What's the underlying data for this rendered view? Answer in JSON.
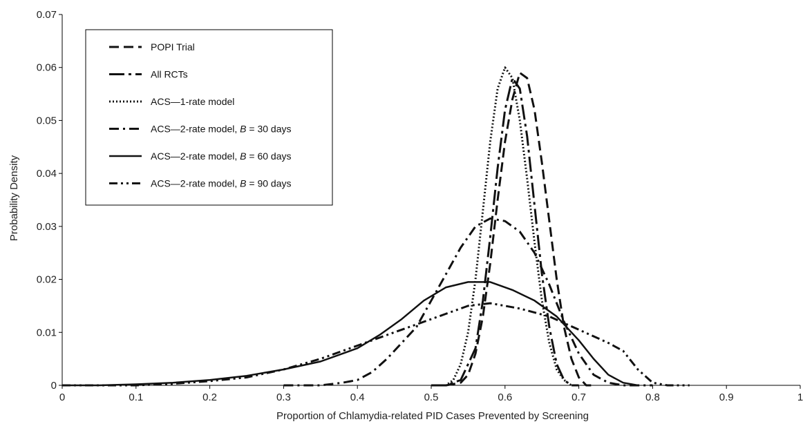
{
  "chart_data": {
    "type": "line",
    "title": "",
    "xlabel": "Proportion of Chlamydia-related PID Cases Prevented by Screening",
    "ylabel": "Probability Density",
    "xlim": [
      0,
      1
    ],
    "ylim": [
      0,
      0.07
    ],
    "x_ticks": [
      "0",
      "0.1",
      "0.2",
      "0.3",
      "0.4",
      "0.5",
      "0.6",
      "0.7",
      "0.8",
      "0.9",
      "1"
    ],
    "y_ticks": [
      "0",
      "0.01",
      "0.02",
      "0.03",
      "0.04",
      "0.05",
      "0.06",
      "0.07"
    ],
    "grid": false,
    "legend_position": "top-left",
    "series": [
      {
        "name": "POPI Trial",
        "style": "dashed",
        "points": [
          [
            0.5,
            0
          ],
          [
            0.52,
            0
          ],
          [
            0.54,
            0.0005
          ],
          [
            0.55,
            0.002
          ],
          [
            0.56,
            0.006
          ],
          [
            0.57,
            0.013
          ],
          [
            0.58,
            0.023
          ],
          [
            0.59,
            0.035
          ],
          [
            0.6,
            0.046
          ],
          [
            0.61,
            0.054
          ],
          [
            0.62,
            0.059
          ],
          [
            0.63,
            0.058
          ],
          [
            0.64,
            0.052
          ],
          [
            0.65,
            0.042
          ],
          [
            0.66,
            0.031
          ],
          [
            0.67,
            0.02
          ],
          [
            0.68,
            0.011
          ],
          [
            0.69,
            0.005
          ],
          [
            0.7,
            0.0015
          ],
          [
            0.71,
            0
          ],
          [
            0.72,
            0
          ]
        ]
      },
      {
        "name": "All RCTs",
        "style": "longdash-dot",
        "points": [
          [
            0.5,
            0
          ],
          [
            0.52,
            0
          ],
          [
            0.54,
            0.001
          ],
          [
            0.56,
            0.007
          ],
          [
            0.57,
            0.016
          ],
          [
            0.58,
            0.028
          ],
          [
            0.59,
            0.041
          ],
          [
            0.6,
            0.052
          ],
          [
            0.61,
            0.058
          ],
          [
            0.62,
            0.056
          ],
          [
            0.63,
            0.047
          ],
          [
            0.64,
            0.034
          ],
          [
            0.65,
            0.021
          ],
          [
            0.66,
            0.011
          ],
          [
            0.67,
            0.004
          ],
          [
            0.68,
            0.001
          ],
          [
            0.69,
            0
          ],
          [
            0.7,
            0
          ]
        ]
      },
      {
        "name": "ACS—1-rate model",
        "style": "dotted",
        "points": [
          [
            0.5,
            0
          ],
          [
            0.52,
            0
          ],
          [
            0.53,
            0.001
          ],
          [
            0.54,
            0.004
          ],
          [
            0.55,
            0.01
          ],
          [
            0.56,
            0.02
          ],
          [
            0.57,
            0.033
          ],
          [
            0.58,
            0.046
          ],
          [
            0.59,
            0.056
          ],
          [
            0.6,
            0.06
          ],
          [
            0.61,
            0.058
          ],
          [
            0.62,
            0.05
          ],
          [
            0.63,
            0.039
          ],
          [
            0.64,
            0.027
          ],
          [
            0.65,
            0.016
          ],
          [
            0.66,
            0.008
          ],
          [
            0.67,
            0.003
          ],
          [
            0.68,
            0.001
          ],
          [
            0.69,
            0
          ],
          [
            0.7,
            0
          ]
        ]
      },
      {
        "name": "ACS—2-rate model, B = 30 days",
        "style": "dash-dot",
        "points": [
          [
            0.3,
            0
          ],
          [
            0.35,
            0
          ],
          [
            0.38,
            0.0005
          ],
          [
            0.4,
            0.001
          ],
          [
            0.42,
            0.0025
          ],
          [
            0.44,
            0.005
          ],
          [
            0.46,
            0.008
          ],
          [
            0.48,
            0.011
          ],
          [
            0.5,
            0.016
          ],
          [
            0.52,
            0.021
          ],
          [
            0.54,
            0.026
          ],
          [
            0.56,
            0.03
          ],
          [
            0.58,
            0.0315
          ],
          [
            0.6,
            0.031
          ],
          [
            0.62,
            0.029
          ],
          [
            0.64,
            0.025
          ],
          [
            0.66,
            0.019
          ],
          [
            0.68,
            0.012
          ],
          [
            0.7,
            0.006
          ],
          [
            0.72,
            0.002
          ],
          [
            0.74,
            0.0005
          ],
          [
            0.76,
            0
          ],
          [
            0.8,
            0
          ]
        ]
      },
      {
        "name": "ACS—2-rate model, B = 60 days",
        "style": "solid",
        "points": [
          [
            0,
            0
          ],
          [
            0.05,
            0
          ],
          [
            0.1,
            0.0002
          ],
          [
            0.15,
            0.0005
          ],
          [
            0.2,
            0.001
          ],
          [
            0.25,
            0.0018
          ],
          [
            0.3,
            0.003
          ],
          [
            0.35,
            0.0045
          ],
          [
            0.4,
            0.007
          ],
          [
            0.43,
            0.0095
          ],
          [
            0.46,
            0.0125
          ],
          [
            0.49,
            0.016
          ],
          [
            0.52,
            0.0185
          ],
          [
            0.55,
            0.0195
          ],
          [
            0.58,
            0.0195
          ],
          [
            0.61,
            0.018
          ],
          [
            0.64,
            0.016
          ],
          [
            0.67,
            0.013
          ],
          [
            0.7,
            0.0085
          ],
          [
            0.72,
            0.005
          ],
          [
            0.74,
            0.002
          ],
          [
            0.76,
            0.0005
          ],
          [
            0.78,
            0
          ]
        ]
      },
      {
        "name": "ACS—2-rate model, B = 90 days",
        "style": "dash-dot-dot",
        "points": [
          [
            0,
            0
          ],
          [
            0.1,
            0
          ],
          [
            0.15,
            0.0003
          ],
          [
            0.2,
            0.0008
          ],
          [
            0.25,
            0.0015
          ],
          [
            0.3,
            0.003
          ],
          [
            0.35,
            0.005
          ],
          [
            0.4,
            0.0075
          ],
          [
            0.44,
            0.0095
          ],
          [
            0.48,
            0.0115
          ],
          [
            0.52,
            0.0135
          ],
          [
            0.55,
            0.015
          ],
          [
            0.58,
            0.0155
          ],
          [
            0.62,
            0.0145
          ],
          [
            0.66,
            0.013
          ],
          [
            0.7,
            0.0105
          ],
          [
            0.74,
            0.008
          ],
          [
            0.76,
            0.0065
          ],
          [
            0.78,
            0.003
          ],
          [
            0.8,
            0.0005
          ],
          [
            0.82,
            0
          ],
          [
            0.85,
            0
          ]
        ]
      }
    ]
  }
}
